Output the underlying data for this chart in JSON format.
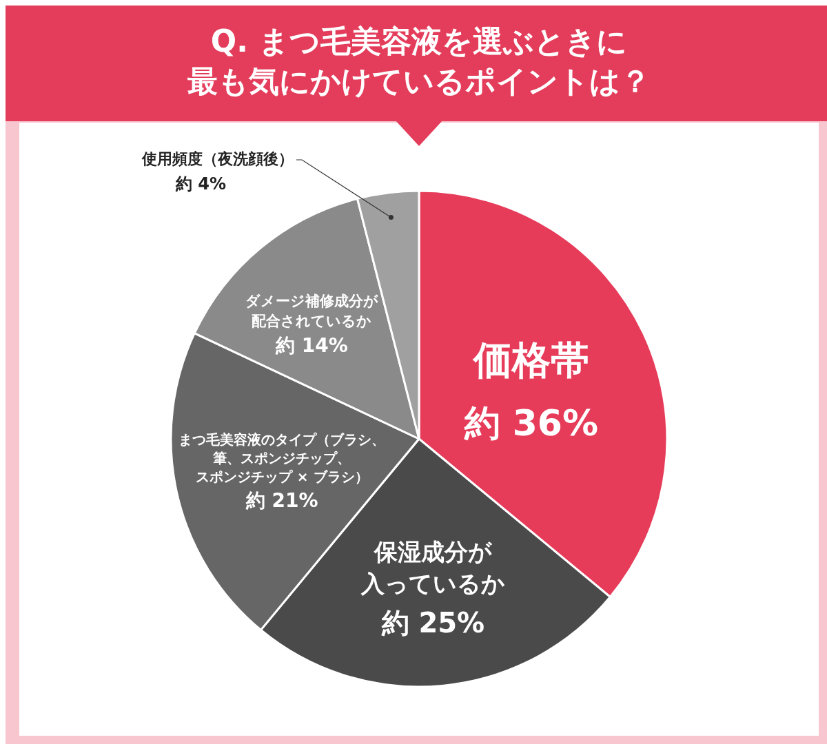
{
  "chart_data": {
    "type": "pie",
    "title": "Q. まつ毛美容液を選ぶときに最も気にかけているポイントは？",
    "categories": [
      "価格帯",
      "保湿成分が入っているか",
      "まつ毛美容液のタイプ（ブラシ、筆、スポンジチップ、スポンジチップ × ブラシ）",
      "ダメージ補修成分が配合されているか",
      "使用頻度（夜洗顔後）"
    ],
    "values": [
      36,
      25,
      21,
      14,
      4
    ],
    "colors": [
      "#e63c5a",
      "#4a4a4a",
      "#666666",
      "#8a8a8a",
      "#a0a0a0"
    ],
    "value_labels": [
      "約 36%",
      "約 25%",
      "約 21%",
      "約 14%",
      "約 4%"
    ]
  }
}
